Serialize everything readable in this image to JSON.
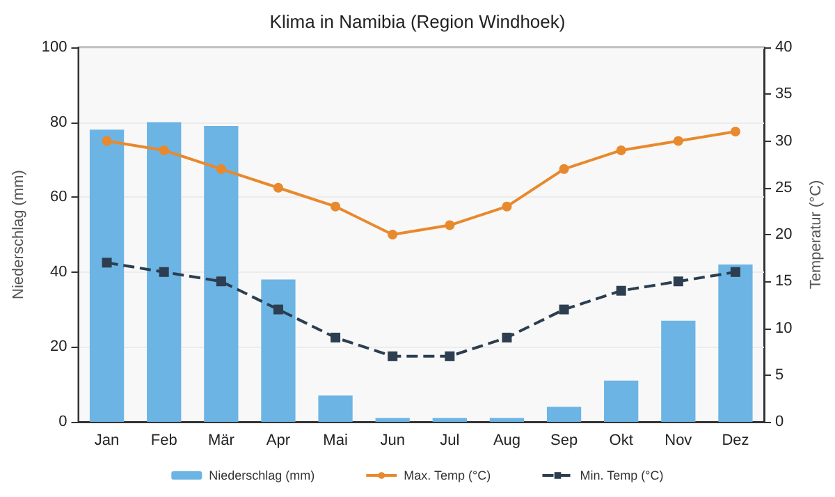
{
  "chart_data": {
    "type": "bar",
    "title": "Klima in Namibia (Region Windhoek)",
    "ylabel": "Niederschlag (mm)",
    "y2label": "Temperatur (°C)",
    "categories": [
      "Jan",
      "Feb",
      "Mär",
      "Apr",
      "Mai",
      "Jun",
      "Jul",
      "Aug",
      "Sep",
      "Okt",
      "Nov",
      "Dez"
    ],
    "series": [
      {
        "name": "Niederschlag (mm)",
        "color": "#6cb4e4",
        "values": [
          78,
          80,
          79,
          38,
          7,
          1,
          1,
          1,
          4,
          11,
          27,
          42
        ]
      },
      {
        "name": "Max. Temp (°C)",
        "type": "line",
        "axis": "y2",
        "color": "#e8892d",
        "marker": "circle",
        "line_style": "solid",
        "values": [
          30,
          29,
          27,
          25,
          23,
          20,
          21,
          23,
          27,
          29,
          30,
          31
        ]
      },
      {
        "name": "Min. Temp (°C)",
        "type": "line",
        "axis": "y2",
        "color": "#2c3e50",
        "marker": "square",
        "line_style": "dashed",
        "values": [
          17,
          16,
          15,
          12,
          9,
          7,
          7,
          9,
          12,
          14,
          15,
          16
        ]
      }
    ],
    "ylim": [
      0,
      100
    ],
    "yticks": [
      0,
      20,
      40,
      60,
      80,
      100
    ],
    "y2lim": [
      0,
      40
    ],
    "y2ticks": [
      0,
      5,
      10,
      15,
      20,
      25,
      30,
      35,
      40
    ],
    "grid": "y",
    "legend": "bottom"
  }
}
